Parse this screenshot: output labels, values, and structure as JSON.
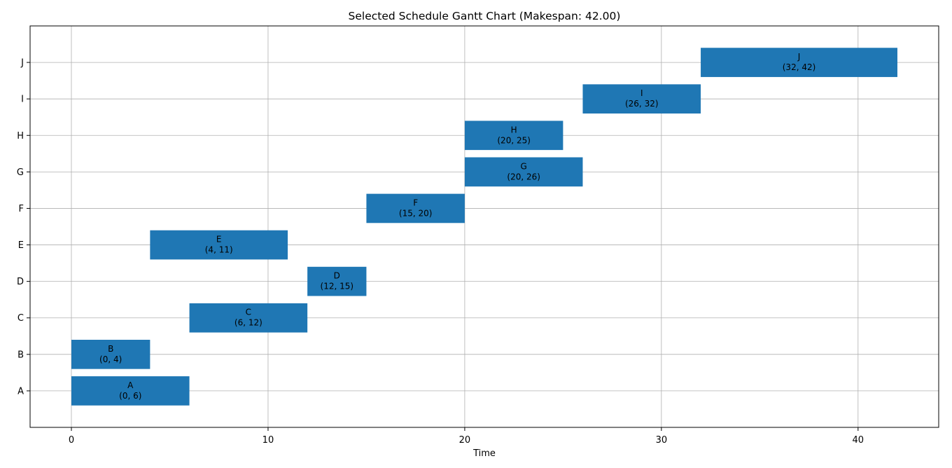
{
  "chart_data": {
    "type": "bar",
    "orientation": "horizontal",
    "title": "Selected Schedule Gantt Chart (Makespan: 42.00)",
    "xlabel": "Time",
    "ylabel": "",
    "xlim": [
      -2.1,
      44.1
    ],
    "x_ticks": [
      0,
      10,
      20,
      30,
      40
    ],
    "grid": true,
    "bar_color": "#1f77b4",
    "categories": [
      "A",
      "B",
      "C",
      "D",
      "E",
      "F",
      "G",
      "H",
      "I",
      "J"
    ],
    "tasks": [
      {
        "name": "A",
        "start": 0,
        "end": 6,
        "label": "(0, 6)"
      },
      {
        "name": "B",
        "start": 0,
        "end": 4,
        "label": "(0, 4)"
      },
      {
        "name": "C",
        "start": 6,
        "end": 12,
        "label": "(6, 12)"
      },
      {
        "name": "D",
        "start": 12,
        "end": 15,
        "label": "(12, 15)"
      },
      {
        "name": "E",
        "start": 4,
        "end": 11,
        "label": "(4, 11)"
      },
      {
        "name": "F",
        "start": 15,
        "end": 20,
        "label": "(15, 20)"
      },
      {
        "name": "G",
        "start": 20,
        "end": 26,
        "label": "(20, 26)"
      },
      {
        "name": "H",
        "start": 20,
        "end": 25,
        "label": "(20, 25)"
      },
      {
        "name": "I",
        "start": 26,
        "end": 32,
        "label": "(26, 32)"
      },
      {
        "name": "J",
        "start": 32,
        "end": 42,
        "label": "(32, 42)"
      }
    ]
  }
}
